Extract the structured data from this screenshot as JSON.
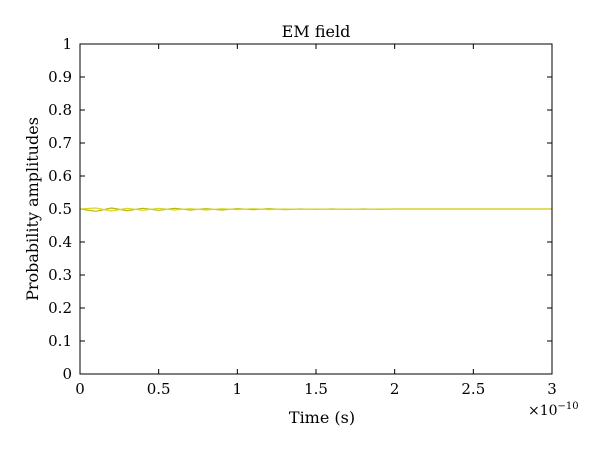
{
  "chart_data": {
    "type": "line",
    "title": "EM field",
    "xlabel": "Time (s)",
    "ylabel": "Probability amplitudes",
    "x_multiplier_label": "×10",
    "x_multiplier_exponent": "−10",
    "xlim": [
      0,
      3
    ],
    "ylim": [
      0,
      1
    ],
    "xticks": [
      "0",
      "0.5",
      "1",
      "1.5",
      "2",
      "2.5",
      "3"
    ],
    "yticks": [
      "0",
      "0.1",
      "0.2",
      "0.3",
      "0.4",
      "0.5",
      "0.6",
      "0.7",
      "0.8",
      "0.9",
      "1"
    ],
    "grid": false,
    "legend": "none",
    "series": [
      {
        "color": "#b8b800",
        "x": [
          0,
          0.1,
          0.2,
          0.3,
          0.4,
          0.5,
          0.6,
          0.7,
          0.8,
          0.9,
          1.0,
          1.1,
          1.2,
          1.3,
          1.4,
          1.5,
          1.6,
          1.7,
          1.8,
          1.9,
          2.0,
          2.1,
          2.2,
          2.3,
          2.4,
          2.5,
          2.6,
          2.7,
          2.8,
          2.9,
          3.0
        ],
        "values": [
          0.5,
          0.493,
          0.503,
          0.495,
          0.502,
          0.496,
          0.502,
          0.497,
          0.501,
          0.497,
          0.501,
          0.498,
          0.501,
          0.498,
          0.5,
          0.499,
          0.5,
          0.499,
          0.5,
          0.499,
          0.5,
          0.5,
          0.5,
          0.5,
          0.5,
          0.5,
          0.5,
          0.5,
          0.5,
          0.5,
          0.5
        ]
      },
      {
        "color": "#d6d62a",
        "x": [
          0,
          0.1,
          0.2,
          0.3,
          0.4,
          0.5,
          0.6,
          0.7,
          0.8,
          0.9,
          1.0,
          1.1,
          1.2,
          1.3,
          1.4,
          1.5,
          1.6,
          1.7,
          1.8,
          1.9,
          2.0,
          2.1,
          2.2,
          2.3,
          2.4,
          2.5,
          2.6,
          2.7,
          2.8,
          2.9,
          3.0
        ],
        "values": [
          0.5,
          0.503,
          0.494,
          0.502,
          0.496,
          0.502,
          0.497,
          0.501,
          0.497,
          0.501,
          0.498,
          0.501,
          0.498,
          0.5,
          0.499,
          0.5,
          0.499,
          0.5,
          0.499,
          0.5,
          0.5,
          0.5,
          0.5,
          0.5,
          0.5,
          0.5,
          0.5,
          0.5,
          0.5,
          0.5,
          0.5
        ]
      }
    ]
  }
}
